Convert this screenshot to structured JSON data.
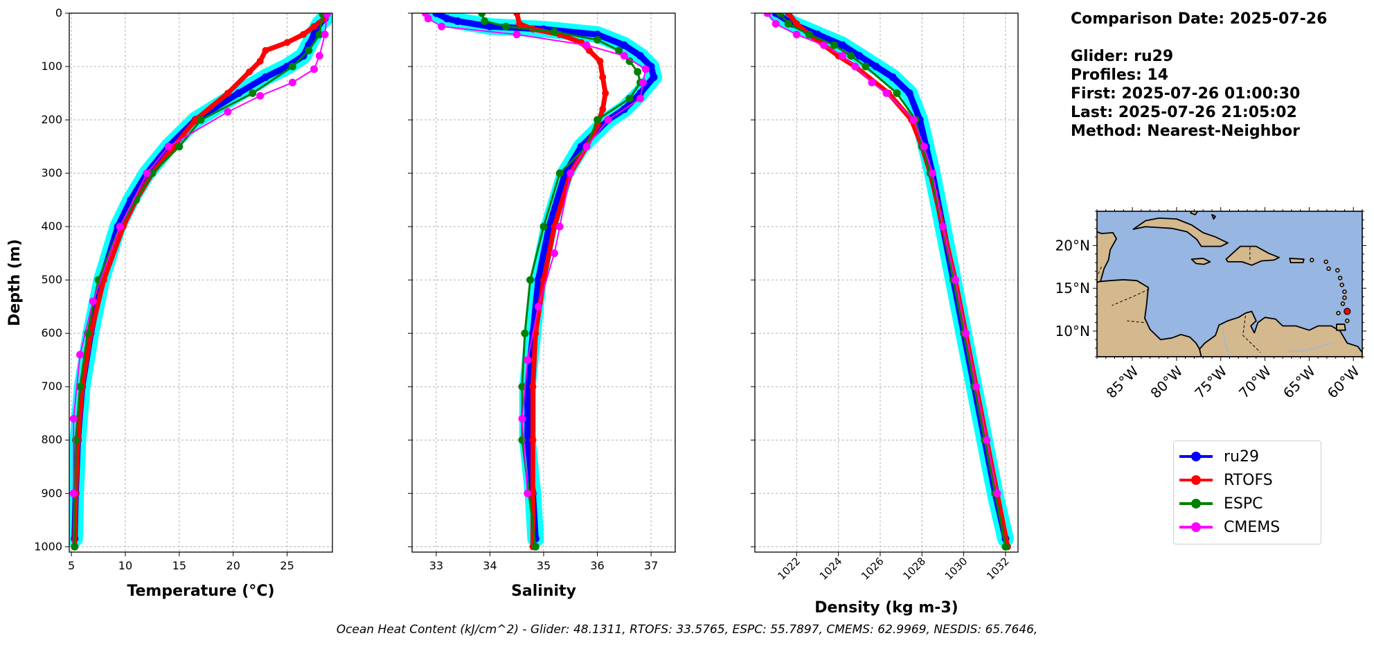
{
  "chart_data": [
    {
      "type": "line",
      "xlabel": "Temperature (°C)",
      "ylabel": "Depth (m)",
      "xlim": [
        4.8,
        29.2
      ],
      "ylim": [
        1010,
        0
      ],
      "xticks": [
        5,
        10,
        15,
        20,
        25
      ],
      "yticks": [
        0,
        100,
        200,
        300,
        400,
        500,
        600,
        700,
        800,
        900,
        1000
      ],
      "grid": true,
      "series": [
        {
          "name": "ru29",
          "color": "#0000ff",
          "y": [
            10,
            20,
            40,
            60,
            80,
            100,
            120,
            150,
            200,
            250,
            300,
            350,
            400,
            500,
            600,
            700,
            800,
            900,
            985
          ],
          "x": [
            28.5,
            28.0,
            27.5,
            27.0,
            26.5,
            25.0,
            23.0,
            20.5,
            16.5,
            14.0,
            12.0,
            10.5,
            9.3,
            7.8,
            6.8,
            6.0,
            5.6,
            5.4,
            5.3
          ]
        },
        {
          "name": "RTOFS",
          "color": "#ff0000",
          "y": [
            10,
            25,
            40,
            55,
            70,
            90,
            110,
            150,
            200,
            250,
            300,
            350,
            400,
            500,
            600,
            700,
            800,
            900,
            1000
          ],
          "x": [
            28.5,
            27.5,
            26.5,
            25.0,
            23.0,
            22.5,
            21.5,
            19.5,
            16.5,
            14.5,
            12.5,
            11.0,
            9.8,
            8.0,
            6.8,
            6.0,
            5.6,
            5.4,
            5.3
          ]
        },
        {
          "name": "ESPC",
          "color": "#008000",
          "y": [
            2,
            40,
            70,
            100,
            150,
            200,
            250,
            300,
            350,
            400,
            500,
            600,
            700,
            800,
            1000
          ],
          "x": [
            28.3,
            28.0,
            27.0,
            25.5,
            21.8,
            17.0,
            15.0,
            12.5,
            11.0,
            9.5,
            7.5,
            6.5,
            5.8,
            5.4,
            5.3
          ]
        },
        {
          "name": "CMEMS",
          "color": "#ff00ff",
          "y": [
            2,
            40,
            80,
            105,
            130,
            155,
            185,
            250,
            300,
            400,
            540,
            640,
            760,
            900
          ],
          "x": [
            28.7,
            28.5,
            28.0,
            27.5,
            25.5,
            22.5,
            19.5,
            14.0,
            12.0,
            9.5,
            7.0,
            5.8,
            5.2,
            5.2
          ]
        }
      ]
    },
    {
      "type": "line",
      "xlabel": "Salinity",
      "ylabel": "",
      "xlim": [
        32.55,
        37.45
      ],
      "ylim": [
        1010,
        0
      ],
      "xticks": [
        33,
        34,
        35,
        36,
        37
      ],
      "yticks": [
        0,
        100,
        200,
        300,
        400,
        500,
        600,
        700,
        800,
        900,
        1000
      ],
      "grid": true,
      "series": [
        {
          "name": "ru29",
          "color": "#0000ff",
          "y": [
            0,
            10,
            15,
            25,
            30,
            40,
            60,
            80,
            100,
            120,
            150,
            180,
            200,
            250,
            300,
            400,
            500,
            600,
            700,
            800,
            900,
            985
          ],
          "x": [
            33.0,
            33.2,
            33.4,
            34.0,
            35.0,
            36.0,
            36.5,
            36.8,
            37.0,
            37.05,
            36.8,
            36.5,
            36.2,
            35.7,
            35.4,
            35.1,
            34.9,
            34.8,
            34.7,
            34.7,
            34.8,
            34.85
          ]
        },
        {
          "name": "RTOFS",
          "color": "#ff0000",
          "y": [
            0,
            20,
            30,
            40,
            55,
            70,
            90,
            120,
            150,
            180,
            210,
            250,
            300,
            400,
            500,
            600,
            700,
            800,
            900,
            1000
          ],
          "x": [
            34.5,
            34.55,
            34.8,
            35.3,
            35.7,
            35.85,
            36.05,
            36.1,
            36.15,
            36.1,
            36.0,
            35.8,
            35.5,
            35.2,
            35.0,
            34.85,
            34.8,
            34.8,
            34.8,
            34.8
          ]
        },
        {
          "name": "ESPC",
          "color": "#008000",
          "y": [
            0,
            15,
            25,
            35,
            50,
            70,
            90,
            110,
            130,
            160,
            200,
            250,
            300,
            400,
            500,
            600,
            700,
            800,
            1000
          ],
          "x": [
            33.85,
            33.9,
            34.3,
            35.2,
            36.0,
            36.4,
            36.6,
            36.75,
            36.8,
            36.6,
            36.0,
            35.8,
            35.3,
            35.0,
            34.75,
            34.65,
            34.6,
            34.6,
            34.85
          ]
        },
        {
          "name": "CMEMS",
          "color": "#ff00ff",
          "y": [
            0,
            10,
            25,
            40,
            60,
            80,
            105,
            130,
            160,
            200,
            250,
            300,
            400,
            450,
            550,
            650,
            760,
            900
          ],
          "x": [
            32.8,
            32.85,
            33.1,
            34.5,
            35.8,
            36.5,
            36.9,
            36.85,
            36.8,
            36.2,
            35.8,
            35.5,
            35.3,
            35.2,
            34.9,
            34.7,
            34.6,
            34.7
          ]
        }
      ]
    },
    {
      "type": "line",
      "xlabel": "Density (kg m-3)",
      "ylabel": "",
      "xlim": [
        1020.0,
        1032.6
      ],
      "ylim": [
        1010,
        0
      ],
      "xticks": [
        1022,
        1024,
        1026,
        1028,
        1030,
        1032
      ],
      "yticks": [
        0,
        100,
        200,
        300,
        400,
        500,
        600,
        700,
        800,
        900,
        1000
      ],
      "grid": true,
      "series": [
        {
          "name": "ru29",
          "color": "#0000ff",
          "y": [
            0,
            20,
            40,
            60,
            80,
            100,
            120,
            150,
            200,
            250,
            300,
            400,
            500,
            600,
            700,
            800,
            900,
            985
          ],
          "x": [
            1021.0,
            1021.8,
            1023.0,
            1024.2,
            1025.0,
            1025.8,
            1026.6,
            1027.4,
            1027.9,
            1028.2,
            1028.5,
            1029.0,
            1029.5,
            1030.0,
            1030.5,
            1031.0,
            1031.5,
            1032.0
          ]
        },
        {
          "name": "RTOFS",
          "color": "#ff0000",
          "y": [
            0,
            20,
            40,
            60,
            80,
            100,
            150,
            200,
            250,
            300,
            400,
            500,
            600,
            700,
            800,
            900,
            1000
          ],
          "x": [
            1021.6,
            1022.0,
            1022.6,
            1023.3,
            1024.0,
            1024.8,
            1026.4,
            1027.5,
            1028.0,
            1028.4,
            1029.0,
            1029.6,
            1030.1,
            1030.6,
            1031.1,
            1031.6,
            1032.1
          ]
        },
        {
          "name": "ESPC",
          "color": "#008000",
          "y": [
            0,
            20,
            40,
            60,
            80,
            100,
            150,
            200,
            250,
            300,
            400,
            500,
            600,
            700,
            800,
            900,
            1000
          ],
          "x": [
            1021.2,
            1021.6,
            1022.6,
            1023.8,
            1024.6,
            1025.3,
            1026.8,
            1027.7,
            1028.0,
            1028.4,
            1029.0,
            1029.5,
            1030.0,
            1030.5,
            1031.0,
            1031.5,
            1032.0
          ]
        },
        {
          "name": "CMEMS",
          "color": "#ff00ff",
          "y": [
            0,
            20,
            40,
            60,
            80,
            100,
            130,
            150,
            200,
            250,
            300,
            400,
            500,
            600,
            700,
            800,
            900
          ],
          "x": [
            1020.6,
            1021.0,
            1022.0,
            1023.3,
            1024.2,
            1024.8,
            1025.6,
            1026.3,
            1027.6,
            1028.1,
            1028.5,
            1029.0,
            1029.6,
            1030.1,
            1030.6,
            1031.1,
            1031.6
          ]
        }
      ]
    },
    {
      "type": "map",
      "xlim": [
        -89,
        -59
      ],
      "ylim": [
        7,
        24
      ],
      "xticks": [
        -85,
        -80,
        -75,
        -70,
        -65,
        -60
      ],
      "xticklabels": [
        "85°W",
        "80°W",
        "75°W",
        "70°W",
        "65°W",
        "60°W"
      ],
      "yticks": [
        10,
        15,
        20
      ],
      "yticklabels": [
        "10°N",
        "15°N",
        "20°N"
      ],
      "ocean_color": "#97b6e1",
      "land_color": "#d4b88e",
      "marker": {
        "lon": -60.7,
        "lat": 12.3,
        "color": "#ff0000"
      }
    }
  ],
  "info": {
    "comparison": "Comparison Date: 2025-07-26",
    "glider": "Glider: ru29",
    "profiles": "Profiles: 14",
    "first": "First: 2025-07-26 01:00:30",
    "last": "Last: 2025-07-26 21:05:02",
    "method": "Method: Nearest-Neighbor"
  },
  "legend": [
    {
      "label": "ru29",
      "color": "#0000ff"
    },
    {
      "label": "RTOFS",
      "color": "#ff0000"
    },
    {
      "label": "ESPC",
      "color": "#008000"
    },
    {
      "label": "CMEMS",
      "color": "#ff00ff"
    }
  ],
  "footer": "Ocean Heat Content (kJ/cm^2) - Glider: 48.1311,  RTOFS: 33.5765,  ESPC: 55.7897,  CMEMS: 62.9969,  NESDIS: 65.7646,"
}
